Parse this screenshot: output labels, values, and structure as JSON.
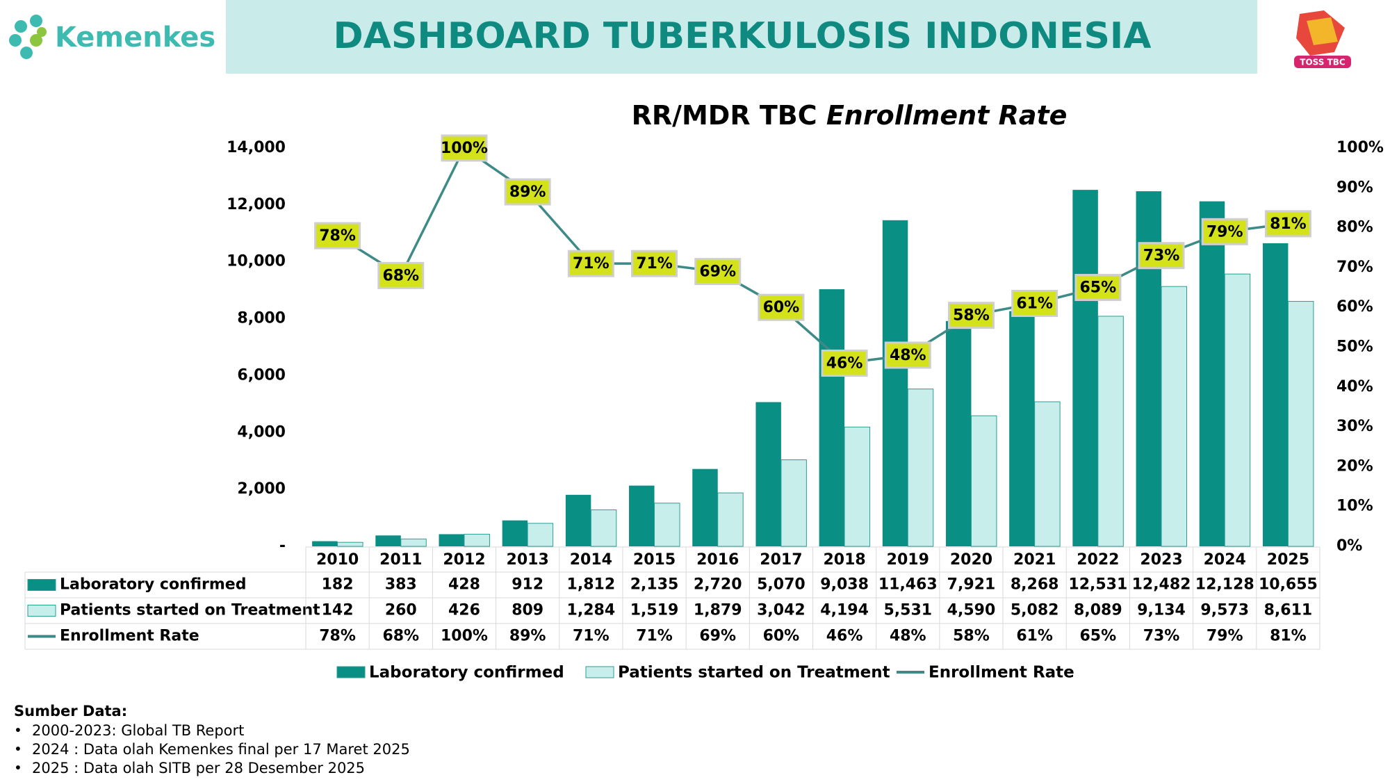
{
  "header": {
    "logo": "Kemenkes",
    "title": "DASHBOARD TUBERKULOSIS INDONESIA",
    "logo_right": "TOSS TBC"
  },
  "chart_data": {
    "type": "bar",
    "title": {
      "text": "RR/MDR TBC",
      "emphasis": "Enrollment Rate"
    },
    "categories": [
      "2010",
      "2011",
      "2012",
      "2013",
      "2014",
      "2015",
      "2016",
      "2017",
      "2018",
      "2019",
      "2020",
      "2021",
      "2022",
      "2023",
      "2024",
      "2025"
    ],
    "series": [
      {
        "name": "Laboratory confirmed",
        "color": "#0a8f84",
        "values": [
          182,
          383,
          428,
          912,
          1812,
          2135,
          2720,
          5070,
          9038,
          11463,
          7921,
          8268,
          12531,
          12482,
          12128,
          10655
        ],
        "value_labels": [
          "182",
          "383",
          "428",
          "912",
          "1,812",
          "2,135",
          "2,720",
          "5,070",
          "9,038",
          "11,463",
          "7,921",
          "8,268",
          "12,531",
          "12,482",
          "12,128",
          "10,655"
        ]
      },
      {
        "name": "Patients started on Treatment",
        "color": "#c8eeeb",
        "values": [
          142,
          260,
          426,
          809,
          1284,
          1519,
          1879,
          3042,
          4194,
          5531,
          4590,
          5082,
          8089,
          9134,
          9573,
          8611
        ],
        "value_labels": [
          "142",
          "260",
          "426",
          "809",
          "1,284",
          "1,519",
          "1,879",
          "3,042",
          "4,194",
          "5,531",
          "4,590",
          "5,082",
          "8,089",
          "9,134",
          "9,573",
          "8,611"
        ]
      },
      {
        "name": "Enrollment Rate",
        "color": "#3d8a86",
        "axis": "y2",
        "type": "line",
        "values": [
          78,
          68,
          100,
          89,
          71,
          71,
          69,
          60,
          46,
          48,
          58,
          61,
          65,
          73,
          79,
          81
        ],
        "value_labels": [
          "78%",
          "68%",
          "100%",
          "89%",
          "71%",
          "71%",
          "69%",
          "60%",
          "46%",
          "48%",
          "58%",
          "61%",
          "65%",
          "73%",
          "79%",
          "81%"
        ]
      }
    ],
    "ylim": [
      0,
      14000
    ],
    "yticks": [
      {
        "value": 0,
        "label": "-"
      },
      {
        "value": 2000,
        "label": "2,000"
      },
      {
        "value": 4000,
        "label": "4,000"
      },
      {
        "value": 6000,
        "label": "6,000"
      },
      {
        "value": 8000,
        "label": "8,000"
      },
      {
        "value": 10000,
        "label": "10,000"
      },
      {
        "value": 12000,
        "label": "12,000"
      },
      {
        "value": 14000,
        "label": "14,000"
      }
    ],
    "y2lim": [
      0,
      100
    ],
    "y2ticks": [
      {
        "value": 0,
        "label": "0%"
      },
      {
        "value": 10,
        "label": "10%"
      },
      {
        "value": 20,
        "label": "20%"
      },
      {
        "value": 30,
        "label": "30%"
      },
      {
        "value": 40,
        "label": "40%"
      },
      {
        "value": 50,
        "label": "50%"
      },
      {
        "value": 60,
        "label": "60%"
      },
      {
        "value": 70,
        "label": "70%"
      },
      {
        "value": 80,
        "label": "80%"
      },
      {
        "value": 90,
        "label": "90%"
      },
      {
        "value": 100,
        "label": "100%"
      }
    ],
    "label_color": "#d4e21a",
    "legend": "bottom"
  },
  "footnote": {
    "title": "Sumber Data:",
    "items": [
      "2000-2023: Global TB Report",
      "2024 : Data olah Kemenkes final per 17 Maret 2025",
      "2025 : Data olah SITB per 28 Desember 2025"
    ]
  }
}
